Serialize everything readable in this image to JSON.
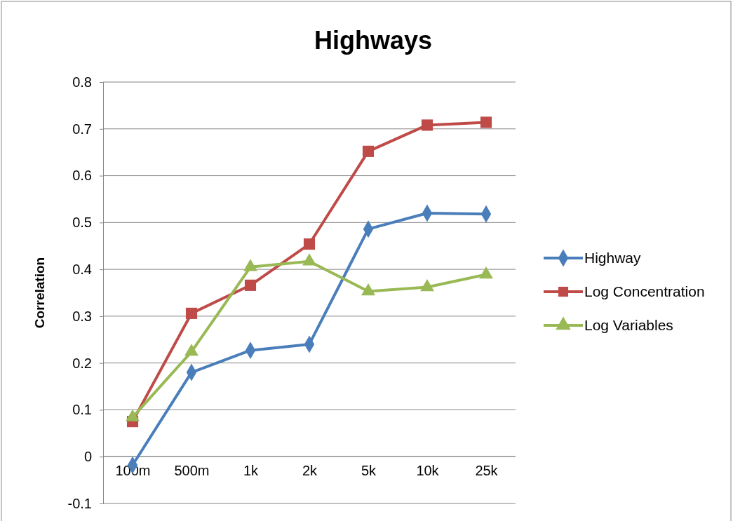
{
  "chart_data": {
    "type": "line",
    "title": "Highways",
    "ylabel": "Correlation",
    "categories": [
      "100m",
      "500m",
      "1k",
      "2k",
      "5k",
      "10k",
      "25k"
    ],
    "series": [
      {
        "name": "Highway",
        "color": "#4a7ebb",
        "marker": "diamond",
        "values": [
          -0.018,
          0.18,
          0.227,
          0.24,
          0.486,
          0.52,
          0.518
        ]
      },
      {
        "name": "Log Concentration",
        "color": "#be4b48",
        "marker": "square",
        "values": [
          0.075,
          0.306,
          0.366,
          0.454,
          0.652,
          0.708,
          0.714
        ]
      },
      {
        "name": "Log Variables",
        "color": "#98b954",
        "marker": "triangle",
        "values": [
          0.084,
          0.224,
          0.405,
          0.417,
          0.353,
          0.362,
          0.389
        ]
      }
    ],
    "ylim": [
      -0.1,
      0.8
    ],
    "yticks": [
      -0.1,
      0,
      0.1,
      0.2,
      0.3,
      0.4,
      0.5,
      0.6,
      0.7,
      0.8
    ],
    "grid": "y",
    "legend": "right"
  }
}
